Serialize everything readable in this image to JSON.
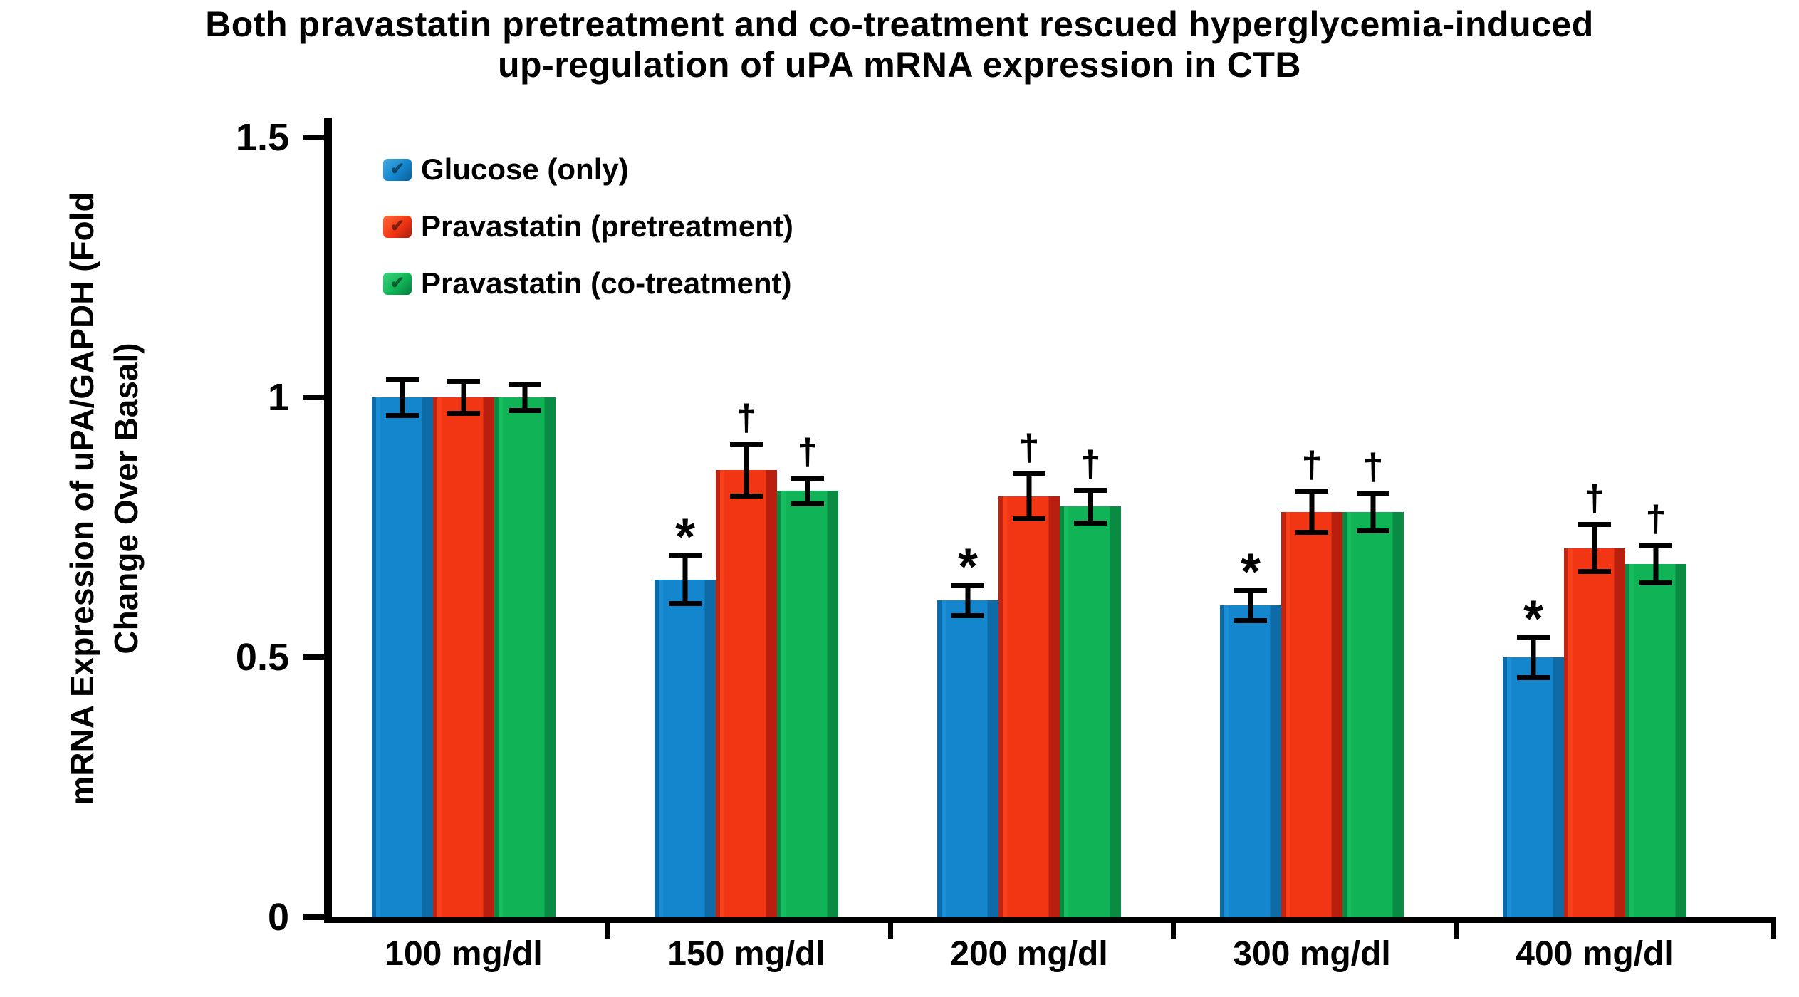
{
  "title": {
    "line1": "Both pravastatin pretreatment and co-treatment rescued hyperglycemia-induced",
    "line2": "up-regulation of uPA mRNA expression in CTB"
  },
  "y_axis": {
    "label_line1": "mRNA Expression of uPA/GAPDH (Fold",
    "label_line2": "Change Over Basal)",
    "ticks": [
      {
        "label": "1.5",
        "value": 1.5
      },
      {
        "label": "1",
        "value": 1.0
      },
      {
        "label": "0.5",
        "value": 0.5
      },
      {
        "label": "0",
        "value": 0.0
      }
    ]
  },
  "legend": {
    "entries": [
      {
        "label": "Glucose  (only)",
        "color": "#1486cd"
      },
      {
        "label": "Pravastatin (pretreatment)",
        "color": "#f23513"
      },
      {
        "label": "Pravastatin (co-treatment)",
        "color": "#10b457"
      }
    ]
  },
  "chart_data": {
    "type": "bar",
    "title": "Both pravastatin pretreatment and co-treatment rescued hyperglycemia-induced up-regulation of uPA mRNA expression in CTB",
    "xlabel": "",
    "ylabel": "mRNA Expression of uPA/GAPDH (Fold Change Over Basal)",
    "ylim": [
      0,
      1.5
    ],
    "yticks": [
      0,
      0.5,
      1,
      1.5
    ],
    "grid": false,
    "legend_position": "upper-left-inside",
    "categories": [
      "100 mg/dl",
      "150 mg/dl",
      "200 mg/dl",
      "300 mg/dl",
      "400 mg/dl"
    ],
    "series": [
      {
        "name": "Glucose  (only)",
        "color": "#1486cd",
        "values": [
          1.0,
          0.65,
          0.61,
          0.6,
          0.5
        ],
        "errors": [
          0.04,
          0.052,
          0.034,
          0.034,
          0.044
        ],
        "significance": [
          "",
          "*",
          "*",
          "*",
          "*"
        ]
      },
      {
        "name": "Pravastatin (pretreatment)",
        "color": "#f23513",
        "values": [
          1.0,
          0.86,
          0.81,
          0.78,
          0.71
        ],
        "errors": [
          0.035,
          0.055,
          0.048,
          0.045,
          0.05
        ],
        "significance": [
          "",
          "†",
          "†",
          "†",
          "†"
        ]
      },
      {
        "name": "Pravastatin (co-treatment)",
        "color": "#10b457",
        "values": [
          1.0,
          0.82,
          0.79,
          0.78,
          0.68
        ],
        "errors": [
          0.03,
          0.03,
          0.036,
          0.041,
          0.041
        ],
        "significance": [
          "",
          "†",
          "†",
          "†",
          "†"
        ]
      }
    ]
  }
}
